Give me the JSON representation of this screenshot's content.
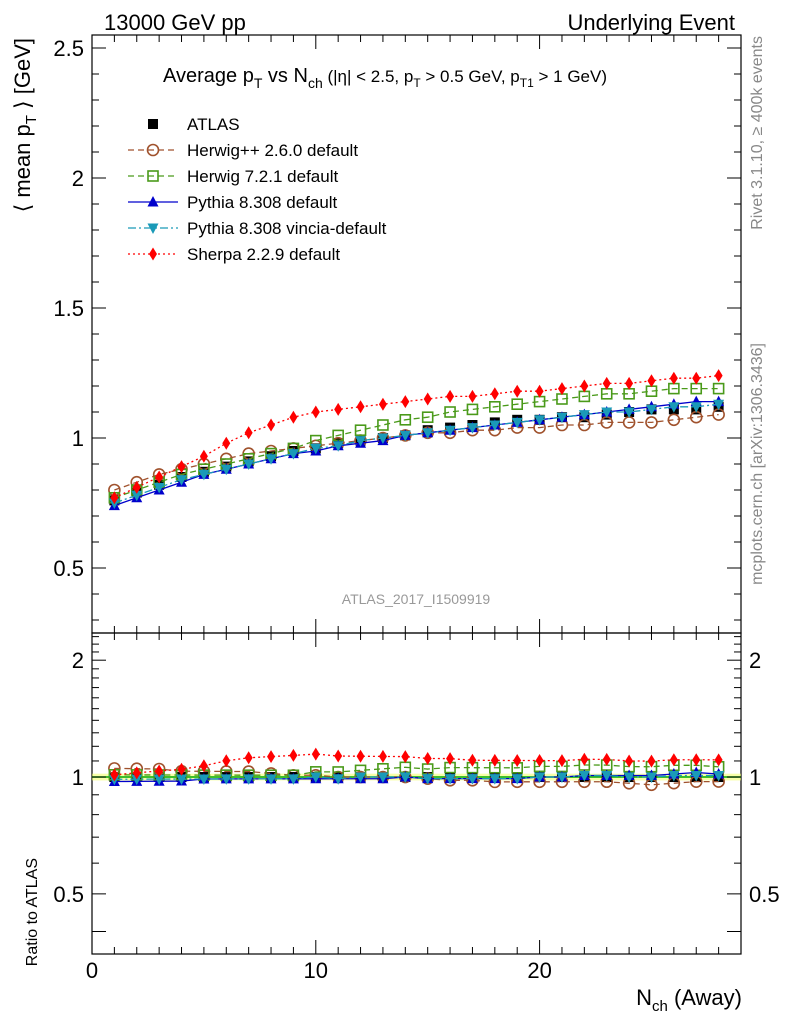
{
  "header": {
    "left": "13000 GeV pp",
    "right": "Underlying Event"
  },
  "title": {
    "main": "Average p",
    "sub_T": "T",
    "vs": " vs N",
    "sub_ch": "ch",
    "cuts_a": " (|η| < 2.5, p",
    "cuts_sub1": "T",
    "cuts_b": " > 0.5 GeV, p",
    "cuts_sub2": "T1",
    "cuts_c": " > 1 GeV)"
  },
  "axes": {
    "ylabel_main_a": "⟨ mean p",
    "ylabel_main_sub": "T",
    "ylabel_main_b": " ⟩ [GeV]",
    "ylabel_ratio": "Ratio to ATLAS",
    "xlabel_a": "N",
    "xlabel_sub": "ch",
    "xlabel_b": " (Away)"
  },
  "side_texts": {
    "rivet": "Rivet 3.1.10, ≥ 400k events",
    "mcplots": "mcplots.cern.ch [arXiv:1306.3436]"
  },
  "watermark": "ATLAS_2017_I1509919",
  "legend": [
    {
      "label": "ATLAS",
      "color": "#000000",
      "marker": "filled-square",
      "line": "none"
    },
    {
      "label": "Herwig++ 2.6.0 default",
      "color": "#a0522d",
      "marker": "open-circle",
      "line": "dashed"
    },
    {
      "label": "Herwig 7.2.1 default",
      "color": "#4a9a1a",
      "marker": "open-square",
      "line": "dashed"
    },
    {
      "label": "Pythia 8.308 default",
      "color": "#0000cc",
      "marker": "filled-triangle-up",
      "line": "solid"
    },
    {
      "label": "Pythia 8.308 vincia-default",
      "color": "#1a9ab8",
      "marker": "filled-triangle-down",
      "line": "dashdot"
    },
    {
      "label": "Sherpa 2.2.9 default",
      "color": "#ff0000",
      "marker": "filled-diamond",
      "line": "dotted"
    }
  ],
  "chart_data": {
    "type": "scatter",
    "x": [
      1,
      2,
      3,
      4,
      5,
      6,
      7,
      8,
      9,
      10,
      11,
      12,
      13,
      14,
      15,
      16,
      17,
      18,
      19,
      20,
      21,
      22,
      23,
      24,
      25,
      26,
      27,
      28
    ],
    "main_ylim": [
      0.25,
      2.55
    ],
    "main_yticks": [
      "0.5",
      "1",
      "1.5",
      "2",
      "2.5"
    ],
    "ratio_ylim": [
      0.35,
      2.35
    ],
    "ratio_yticks": [
      "0.5",
      "1",
      "2"
    ],
    "xlim": [
      0,
      29
    ],
    "xticks": [
      "0",
      "10",
      "20"
    ],
    "series": [
      {
        "name": "ATLAS",
        "values": [
          0.76,
          0.79,
          0.82,
          0.85,
          0.87,
          0.89,
          0.91,
          0.93,
          0.95,
          0.96,
          0.98,
          0.99,
          1.0,
          1.01,
          1.03,
          1.04,
          1.05,
          1.06,
          1.07,
          1.07,
          1.08,
          1.08,
          1.09,
          1.1,
          1.11,
          1.11,
          1.11,
          1.12
        ]
      },
      {
        "name": "Herwig++ 2.6.0 default",
        "values": [
          0.8,
          0.83,
          0.86,
          0.88,
          0.9,
          0.92,
          0.94,
          0.95,
          0.96,
          0.97,
          0.98,
          0.99,
          1.0,
          1.01,
          1.02,
          1.02,
          1.03,
          1.03,
          1.04,
          1.04,
          1.05,
          1.05,
          1.06,
          1.06,
          1.06,
          1.07,
          1.08,
          1.09
        ]
      },
      {
        "name": "Herwig 7.2.1 default",
        "values": [
          0.77,
          0.8,
          0.83,
          0.86,
          0.88,
          0.9,
          0.92,
          0.94,
          0.96,
          0.99,
          1.01,
          1.03,
          1.05,
          1.07,
          1.08,
          1.1,
          1.11,
          1.12,
          1.13,
          1.14,
          1.15,
          1.16,
          1.17,
          1.17,
          1.18,
          1.19,
          1.19,
          1.19
        ]
      },
      {
        "name": "Pythia 8.308 default",
        "values": [
          0.74,
          0.77,
          0.8,
          0.83,
          0.86,
          0.88,
          0.9,
          0.92,
          0.94,
          0.95,
          0.97,
          0.98,
          0.99,
          1.01,
          1.02,
          1.03,
          1.04,
          1.05,
          1.06,
          1.07,
          1.08,
          1.09,
          1.1,
          1.11,
          1.12,
          1.13,
          1.14,
          1.14
        ]
      },
      {
        "name": "Pythia 8.308 vincia-default",
        "values": [
          0.75,
          0.78,
          0.81,
          0.84,
          0.86,
          0.88,
          0.9,
          0.92,
          0.94,
          0.96,
          0.97,
          0.99,
          1.0,
          1.01,
          1.02,
          1.03,
          1.04,
          1.05,
          1.06,
          1.07,
          1.08,
          1.09,
          1.1,
          1.1,
          1.11,
          1.12,
          1.12,
          1.13
        ]
      },
      {
        "name": "Sherpa 2.2.9 default",
        "values": [
          0.77,
          0.81,
          0.85,
          0.89,
          0.93,
          0.98,
          1.02,
          1.05,
          1.08,
          1.1,
          1.11,
          1.12,
          1.13,
          1.14,
          1.15,
          1.16,
          1.16,
          1.17,
          1.18,
          1.18,
          1.19,
          1.2,
          1.21,
          1.21,
          1.22,
          1.23,
          1.23,
          1.24
        ]
      }
    ]
  }
}
